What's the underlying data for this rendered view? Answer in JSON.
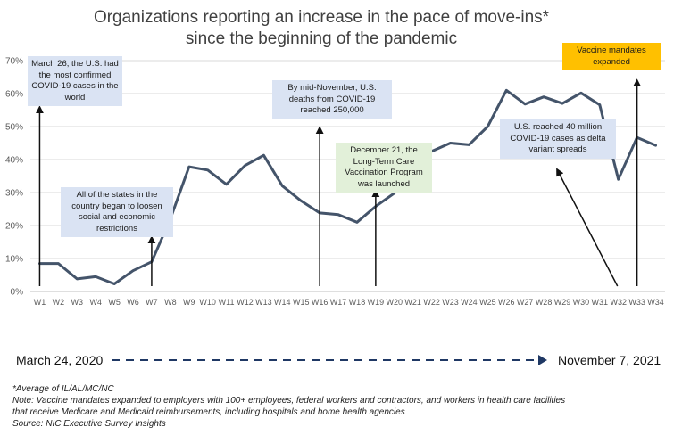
{
  "chart_data": {
    "type": "line",
    "title_line1": "Organizations reporting an increase in the pace of move-ins*",
    "title_line2": "since the beginning of the pandemic",
    "categories": [
      "W1",
      "W2",
      "W3",
      "W4",
      "W5",
      "W6",
      "W7",
      "W8",
      "W9",
      "W10",
      "W11",
      "W12",
      "W13",
      "W14",
      "W15",
      "W16",
      "W17",
      "W18",
      "W19",
      "W20",
      "W21",
      "W22",
      "W23",
      "W24",
      "W25",
      "W26",
      "W27",
      "W28",
      "W29",
      "W30",
      "W31",
      "W32",
      "W33",
      "W34"
    ],
    "values": [
      8.5,
      8.5,
      3.8,
      4.5,
      2.3,
      6.3,
      9.0,
      22.0,
      37.8,
      36.8,
      32.5,
      38.2,
      41.3,
      32.0,
      27.5,
      23.8,
      23.3,
      21.0,
      25.8,
      29.8,
      40.3,
      42.5,
      45.0,
      44.5,
      50.0,
      61.0,
      56.8,
      59.0,
      57.0,
      60.2,
      56.6,
      34.0,
      46.7,
      44.3
    ],
    "yticks": [
      "0%",
      "10%",
      "20%",
      "30%",
      "40%",
      "50%",
      "60%",
      "70%"
    ],
    "ylim": [
      0,
      70
    ],
    "grid": true,
    "line_color": "#44546a",
    "annotations": [
      {
        "text": "March 26, the U.S. had the most confirmed COVID-19 cases in the world",
        "color": "blue",
        "arrow_week": 1,
        "arrow_direction": "up"
      },
      {
        "text": "All of the states in the country began to loosen social and economic restrictions",
        "color": "blue",
        "arrow_week": 7,
        "arrow_direction": "up"
      },
      {
        "text": "By mid-November, U.S. deaths from COVID-19 reached 250,000",
        "color": "blue",
        "arrow_week": 16,
        "arrow_direction": "up"
      },
      {
        "text": "December 21, the Long-Term Care Vaccination Program was launched",
        "color": "green",
        "arrow_week": 19,
        "arrow_direction": "up"
      },
      {
        "text": "U.S. reached 40 million COVID-19 cases as delta variant spreads",
        "color": "blue",
        "arrow_week": 32,
        "arrow_direction": "up-left"
      },
      {
        "text": "Vaccine mandates expanded",
        "color": "gold",
        "arrow_week": 33,
        "arrow_direction": "up"
      }
    ],
    "colors": {
      "blue_box": "#dae3f3",
      "green_box": "#e2f0d9",
      "gold_box": "#ffc000",
      "grid": "#d9d9d9"
    }
  },
  "timeline": {
    "start": "March 24, 2020",
    "end": "November 7, 2021"
  },
  "notes": [
    "*Average of IL/AL/MC/NC",
    "Note: Vaccine mandates expanded to employers with 100+ employees, federal workers and contractors, and workers in health care facilities",
    "that receive Medicare and Medicaid reimbursements, including hospitals and home health agencies",
    "Source: NIC Executive Survey Insights"
  ]
}
